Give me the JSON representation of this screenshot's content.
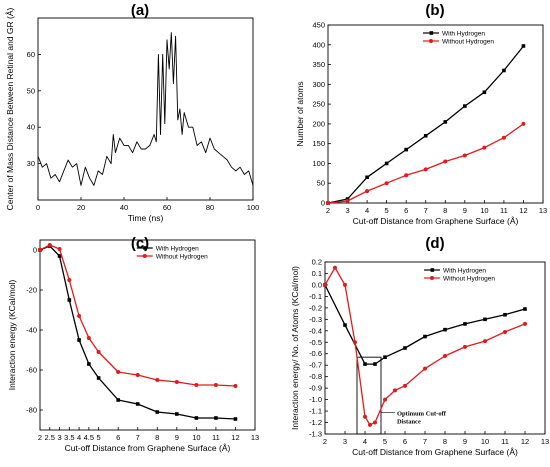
{
  "chart_data": [
    {
      "panel": "(a)",
      "type": "line",
      "title": "(a)",
      "xlabel": "Time (ns)",
      "ylabel": "Center of Mass Distance Between Retinal and GR (Å)",
      "xlim": [
        0,
        100
      ],
      "ylim": [
        20,
        70
      ],
      "xticks": [
        0,
        20,
        40,
        60,
        80,
        100
      ],
      "yticks": [
        30,
        40,
        50,
        60
      ],
      "colors": {
        "line": "#000000"
      },
      "series": [
        {
          "x": [
            0,
            2,
            4,
            6,
            8,
            10,
            12,
            14,
            16,
            18,
            20,
            22,
            24,
            26,
            28,
            30,
            32,
            34,
            35,
            36,
            38,
            40,
            42,
            44,
            46,
            48,
            50,
            52,
            54,
            55,
            56,
            57,
            58,
            59,
            60,
            61,
            62,
            63,
            64,
            65,
            66,
            67,
            68,
            70,
            72,
            74,
            76,
            78,
            80,
            82,
            84,
            86,
            88,
            90,
            92,
            94,
            96,
            98,
            100
          ],
          "values": [
            32,
            29,
            30,
            26,
            27,
            25,
            28,
            31,
            29,
            30,
            24,
            29,
            26,
            24,
            28,
            27,
            32,
            30,
            38,
            33,
            37,
            35,
            35,
            33,
            36,
            34,
            34,
            35,
            38,
            36,
            60,
            38,
            60,
            41,
            64,
            56,
            66,
            52,
            65,
            42,
            45,
            38,
            44,
            40,
            40,
            35,
            36,
            33,
            37,
            34,
            33,
            32,
            31,
            29,
            28,
            29,
            27,
            28,
            24
          ]
        }
      ]
    },
    {
      "panel": "(b)",
      "type": "line",
      "title": "(b)",
      "xlabel": "Cut-off Distance from Graphene Surface (Å)",
      "ylabel": "Number of atoms",
      "xlim": [
        2,
        13
      ],
      "ylim": [
        0,
        450
      ],
      "xticks": [
        2,
        3,
        4,
        5,
        6,
        7,
        8,
        9,
        10,
        11,
        12,
        13
      ],
      "yticks": [
        0,
        50,
        100,
        150,
        200,
        250,
        300,
        350,
        400,
        450
      ],
      "legend_position": "top-left",
      "series": [
        {
          "name": "With Hydrogen",
          "color": "#000000",
          "marker": "square",
          "x": [
            2,
            3,
            4,
            5,
            6,
            7,
            8,
            9,
            10,
            11,
            12
          ],
          "values": [
            0,
            10,
            65,
            100,
            135,
            170,
            205,
            245,
            280,
            335,
            397
          ]
        },
        {
          "name": "Without Hydrogen",
          "color": "#e31a1c",
          "marker": "circle",
          "x": [
            2,
            3,
            4,
            5,
            6,
            7,
            8,
            9,
            10,
            11,
            12
          ],
          "values": [
            0,
            5,
            30,
            50,
            70,
            85,
            105,
            120,
            140,
            165,
            200
          ]
        }
      ]
    },
    {
      "panel": "(c)",
      "type": "line",
      "title": "(c)",
      "xlabel": "Cut-off Distance from Graphene Surface (Å)",
      "ylabel": "Interaction energy (KCal/mol)",
      "xlim": [
        2,
        13
      ],
      "ylim": [
        -90,
        5
      ],
      "xticks": [
        2,
        2.5,
        3,
        3.5,
        4,
        4.5,
        5,
        6,
        7,
        8,
        9,
        10,
        11,
        12,
        13
      ],
      "xtick_labels": [
        "2",
        "2.5",
        "3",
        "3.5",
        "4",
        "4.5",
        "5",
        "6",
        "7",
        "8",
        "9",
        "10",
        "11",
        "12",
        "13"
      ],
      "yticks": [
        0,
        -20,
        -40,
        -60,
        -80
      ],
      "legend_position": "top-right",
      "series": [
        {
          "name": "With Hydrogen",
          "color": "#000000",
          "marker": "square",
          "x": [
            2,
            2.5,
            3,
            3.5,
            4,
            4.5,
            5,
            6,
            7,
            8,
            9,
            10,
            11,
            12
          ],
          "values": [
            0,
            2,
            -3,
            -25,
            -45,
            -57,
            -64,
            -75,
            -77,
            -81,
            -82,
            -84,
            -84,
            -84.5
          ]
        },
        {
          "name": "Without Hydrogen",
          "color": "#e31a1c",
          "marker": "circle",
          "x": [
            2,
            2.5,
            3,
            3.5,
            4,
            4.5,
            5,
            6,
            7,
            8,
            9,
            10,
            11,
            12
          ],
          "values": [
            0,
            2.5,
            0.5,
            -15,
            -33,
            -44,
            -51,
            -61,
            -62.5,
            -65,
            -66,
            -67.5,
            -67.5,
            -68
          ]
        }
      ]
    },
    {
      "panel": "(d)",
      "type": "line",
      "title": "(d)",
      "xlabel": "Cut-off Distance from Graphene Surface (Å)",
      "ylabel": "Interaction energy/ No. of Atoms (KCal/mol)",
      "xlim": [
        2,
        13
      ],
      "ylim": [
        -1.3,
        0.2
      ],
      "xticks": [
        2,
        3,
        4,
        5,
        6,
        7,
        8,
        9,
        10,
        11,
        12,
        13
      ],
      "yticks": [
        0.2,
        0.1,
        0.0,
        -0.1,
        -0.2,
        -0.3,
        -0.4,
        -0.5,
        -0.6,
        -0.7,
        -0.8,
        -0.9,
        -1.0,
        -1.1,
        -1.2,
        -1.3
      ],
      "ytick_labels": [
        "0.2",
        "0.1",
        "0.0",
        "-0.1",
        "-0.2",
        "-0.3",
        "-0.4",
        "-0.5",
        "-0.6",
        "-0.7",
        "-0.8",
        "-0.9",
        "-1.0",
        "-1.1",
        "-1.2",
        "-1.3"
      ],
      "legend_position": "top-right",
      "annotation": {
        "text_line1": "Optimum Cut-off",
        "text_line2": "Distance",
        "box_x": [
          3.6,
          4.8
        ],
        "box_y": [
          -1.3,
          -0.63
        ]
      },
      "series": [
        {
          "name": "With Hydrogen",
          "color": "#000000",
          "marker": "square",
          "x": [
            2,
            3,
            4,
            4.5,
            5,
            6,
            7,
            8,
            9,
            10,
            11,
            12
          ],
          "values": [
            0,
            -0.35,
            -0.69,
            -0.69,
            -0.63,
            -0.55,
            -0.45,
            -0.39,
            -0.34,
            -0.3,
            -0.26,
            -0.21
          ]
        },
        {
          "name": "Without Hydrogen",
          "color": "#e31a1c",
          "marker": "circle",
          "x": [
            2,
            2.5,
            3,
            3.5,
            4,
            4.25,
            4.5,
            5,
            5.5,
            6,
            7,
            8,
            9,
            10,
            11,
            12
          ],
          "values": [
            0,
            0.15,
            0.0,
            -0.5,
            -1.15,
            -1.22,
            -1.2,
            -1.0,
            -0.92,
            -0.88,
            -0.73,
            -0.62,
            -0.54,
            -0.49,
            -0.41,
            -0.34
          ]
        }
      ]
    }
  ]
}
